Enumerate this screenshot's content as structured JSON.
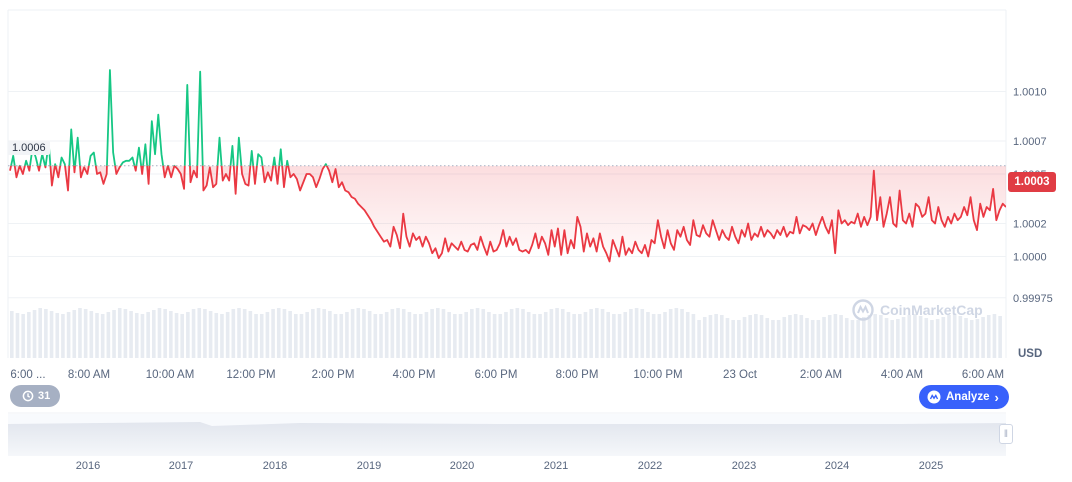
{
  "chart_data": {
    "type": "line",
    "currency": "USD",
    "current_price": "1.0003",
    "reference_price": 1.00055,
    "reference_label": "1.0006",
    "ylim": [
      0.99968,
      1.00115
    ],
    "y_ticks": [
      {
        "value": 1.001,
        "label": "1.0010"
      },
      {
        "value": 1.0007,
        "label": "1.0007"
      },
      {
        "value": 1.0005,
        "label": "1.0005"
      },
      {
        "value": 1.0002,
        "label": "1.0002"
      },
      {
        "value": 1.0,
        "label": "1.0000"
      },
      {
        "value": 0.99975,
        "label": "0.99975"
      }
    ],
    "x_tick_labels": [
      "6:00 ...",
      "8:00 AM",
      "10:00 AM",
      "12:00 PM",
      "2:00 PM",
      "4:00 PM",
      "6:00 PM",
      "8:00 PM",
      "10:00 PM",
      "23 Oct",
      "2:00 AM",
      "4:00 AM",
      "6:00 AM"
    ],
    "year_labels": [
      "2016",
      "2017",
      "2018",
      "2019",
      "2020",
      "2021",
      "2022",
      "2023",
      "2024",
      "2025"
    ],
    "colors": {
      "up": "#16c784",
      "down": "#ea3943",
      "badge": "#e03c44",
      "accent": "#3861fb"
    },
    "series": [
      {
        "values": [
          1.00052,
          1.00061,
          1.00048,
          1.00055,
          1.0005,
          1.00058,
          1.00052,
          1.00066,
          1.0006,
          1.00052,
          1.00062,
          1.00054,
          1.00069,
          1.00043,
          1.00056,
          1.00048,
          1.0006,
          1.00056,
          1.0004,
          1.00077,
          1.00051,
          1.00072,
          1.00048,
          1.00054,
          1.0005,
          1.00061,
          1.00063,
          1.0005,
          1.00051,
          1.00044,
          1.0005,
          1.00113,
          1.00063,
          1.0005,
          1.00054,
          1.00057,
          1.00058,
          1.00058,
          1.0006,
          1.00052,
          1.00066,
          1.0005,
          1.00068,
          1.00044,
          1.00082,
          1.00062,
          1.00086,
          1.00062,
          1.00048,
          1.00055,
          1.00048,
          1.00055,
          1.00053,
          1.0005,
          1.00041,
          1.00104,
          1.00045,
          1.00052,
          1.00048,
          1.00112,
          1.0004,
          1.00043,
          1.00054,
          1.00042,
          1.00044,
          1.00072,
          1.00046,
          1.0005,
          1.00046,
          1.00067,
          1.00038,
          1.00072,
          1.0005,
          1.00044,
          1.00043,
          1.00064,
          1.00044,
          1.00062,
          1.0006,
          1.00045,
          1.00051,
          1.00046,
          1.0006,
          1.00044,
          1.00065,
          1.00042,
          1.00058,
          1.00048,
          1.0005,
          1.00047,
          1.0004,
          1.00045,
          1.0005,
          1.0005,
          1.00048,
          1.00042,
          1.00047,
          1.00053,
          1.00056,
          1.00052,
          1.00045,
          1.00053,
          1.00042,
          1.00045,
          1.0004,
          1.00039,
          1.00036,
          1.00035,
          1.00032,
          1.0003,
          1.00028,
          1.00025,
          1.00022,
          1.00018,
          1.00015,
          1.00012,
          1.00009,
          1.0001,
          1.00006,
          1.00018,
          1.00013,
          1.00005,
          1.00026,
          1.00012,
          1.00006,
          1.00014,
          1.0001,
          1.00012,
          1.00006,
          1.00012,
          1.00008,
          1.00002,
          1.00005,
          0.99999,
          1.00002,
          1.00011,
          1.00003,
          1.00008,
          1.00006,
          1.00004,
          1.00009,
          1.00004,
          1.00003,
          1.00007,
          1.00008,
          1.00004,
          1.00012,
          1.00006,
          1.00001,
          1.00009,
          1.00003,
          1.00004,
          1.00008,
          1.00016,
          1.00006,
          1.00012,
          1.00007,
          1.00011,
          1.00004,
          1.00003,
          1.00004,
          1.00002,
          1.00007,
          1.00014,
          1.00005,
          1.00012,
          1.00008,
          1.00001,
          1.00016,
          1.00006,
          1.00017,
          1.00001,
          1.00016,
          1.00002,
          1.0001,
          1.00005,
          1.00024,
          1.00018,
          1.00003,
          1.00014,
          1.00006,
          1.00011,
          1.00003,
          1.00014,
          1.00006,
          1.00002,
          0.99997,
          1.0001,
          1.00005,
          1.0,
          1.00012,
          1.00001,
          1.00005,
          1.00002,
          1.00009,
          1.00004,
          1.00002,
          1.00007,
          1.0,
          1.0001,
          1.00008,
          1.00022,
          1.00012,
          1.00005,
          1.00016,
          1.00008,
          1.00004,
          1.00016,
          1.00012,
          1.00018,
          1.0001,
          1.00007,
          1.00022,
          1.00013,
          1.00012,
          1.00019,
          1.00014,
          1.00012,
          1.00022,
          1.00016,
          1.0001,
          1.00016,
          1.00012,
          1.0001,
          1.00018,
          1.00012,
          1.00008,
          1.00016,
          1.00012,
          1.0002,
          1.0001,
          1.00014,
          1.00012,
          1.00018,
          1.00012,
          1.00016,
          1.00014,
          1.00011,
          1.00016,
          1.00013,
          1.00018,
          1.00012,
          1.00015,
          1.00014,
          1.00024,
          1.00014,
          1.00019,
          1.00018,
          1.00016,
          1.0002,
          1.00013,
          1.00019,
          1.00024,
          1.00018,
          1.00014,
          1.00022,
          1.00002,
          1.00028,
          1.0002,
          1.00022,
          1.00019,
          1.00021,
          1.0002,
          1.00026,
          1.00018,
          1.00024,
          1.00019,
          1.00024,
          1.00052,
          1.00022,
          1.00036,
          1.00018,
          1.00026,
          1.00036,
          1.0002,
          1.00018,
          1.0004,
          1.00022,
          1.0002,
          1.00026,
          1.00018,
          1.00032,
          1.0003,
          1.00024,
          1.00026,
          1.00036,
          1.00022,
          1.0002,
          1.0003,
          1.00022,
          1.00018,
          1.00024,
          1.0002,
          1.00026,
          1.00022,
          1.00024,
          1.0003,
          1.00025,
          1.00036,
          1.00022,
          1.00016,
          1.00032,
          1.00024,
          1.0003,
          1.00028,
          1.00041,
          1.00022,
          1.00028,
          1.00032,
          1.0003
        ]
      }
    ]
  },
  "ui": {
    "events_count": "31",
    "analyze_label": "Analyze",
    "currency_label": "USD",
    "watermark": "CoinMarketCap"
  }
}
